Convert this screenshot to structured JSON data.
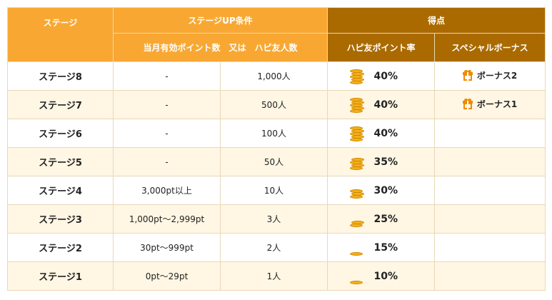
{
  "headers": {
    "stage": "ステージ",
    "condition": "ステージUP条件",
    "condition_sub": "当月有効ポイント数　又は　ハピ友人数",
    "score": "得点",
    "rate": "ハピ友ポイント率",
    "bonus": "スペシャルボーナス"
  },
  "rows": [
    {
      "stage": "ステージ8",
      "points": "-",
      "friends": "1,000人",
      "rate": "40%",
      "coins": 5,
      "bonus": "ボーナス2"
    },
    {
      "stage": "ステージ7",
      "points": "-",
      "friends": "500人",
      "rate": "40%",
      "coins": 5,
      "bonus": "ボーナス1"
    },
    {
      "stage": "ステージ6",
      "points": "-",
      "friends": "100人",
      "rate": "40%",
      "coins": 5,
      "bonus": ""
    },
    {
      "stage": "ステージ5",
      "points": "-",
      "friends": "50人",
      "rate": "35%",
      "coins": 4,
      "bonus": ""
    },
    {
      "stage": "ステージ4",
      "points": "3,000pt以上",
      "friends": "10人",
      "rate": "30%",
      "coins": 3,
      "bonus": ""
    },
    {
      "stage": "ステージ3",
      "points": "1,000pt～2,999pt",
      "friends": "3人",
      "rate": "25%",
      "coins": 2,
      "bonus": ""
    },
    {
      "stage": "ステージ2",
      "points": "30pt～999pt",
      "friends": "2人",
      "rate": "15%",
      "coins": 1,
      "bonus": ""
    },
    {
      "stage": "ステージ1",
      "points": "0pt～29pt",
      "friends": "1人",
      "rate": "10%",
      "coins": 1,
      "bonus": ""
    }
  ],
  "icons": {
    "coin": "coin-stack-icon",
    "gift": "gift-icon"
  },
  "colors": {
    "header_orange": "#f8a832",
    "header_brown": "#aa6a00",
    "row_alt": "#fff6e4",
    "coin": "#f2b01c",
    "gift": "#f08a00"
  }
}
